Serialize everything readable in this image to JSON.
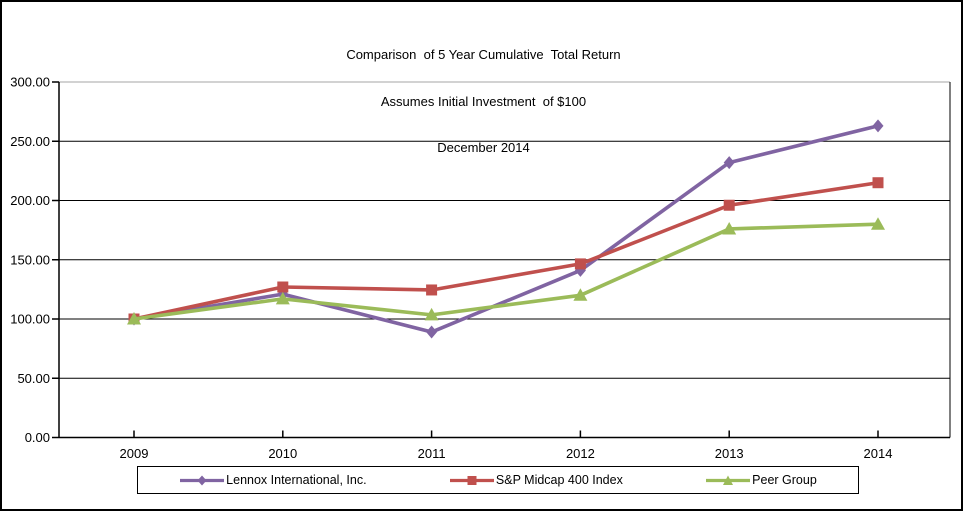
{
  "title": {
    "line1": "Comparison  of 5 Year Cumulative  Total Return",
    "line2": "Assumes Initial Investment  of $100",
    "line3": "December 2014"
  },
  "chart_data": {
    "type": "line",
    "title": "Comparison of 5 Year Cumulative Total Return",
    "subtitle": "Assumes Initial Investment of $100",
    "period_label": "December 2014",
    "categories": [
      "2009",
      "2010",
      "2011",
      "2012",
      "2013",
      "2014"
    ],
    "series": [
      {
        "name": "Lennox International, Inc.",
        "color": "#8064A2",
        "marker": "diamond",
        "values": [
          100,
          121,
          89,
          141,
          232,
          263
        ]
      },
      {
        "name": "S&P Midcap 400 Index",
        "color": "#C0504D",
        "marker": "square",
        "values": [
          100,
          127,
          124.5,
          146.5,
          196,
          215
        ]
      },
      {
        "name": "Peer Group",
        "color": "#9BBB59",
        "marker": "triangle",
        "values": [
          100,
          117,
          103.5,
          120,
          176,
          180
        ]
      }
    ],
    "xlabel": "",
    "ylabel": "",
    "ylim": [
      0,
      300
    ],
    "ytick_step": 50,
    "yticks": [
      {
        "label": "0.00",
        "value": 0
      },
      {
        "label": "50.00",
        "value": 50
      },
      {
        "label": "100.00",
        "value": 100
      },
      {
        "label": "150.00",
        "value": 150
      },
      {
        "label": "200.00",
        "value": 200
      },
      {
        "label": "250.00",
        "value": 250
      },
      {
        "label": "300.00",
        "value": 300
      }
    ],
    "grid": "horizontal",
    "legend_position": "bottom",
    "axis_color": "#000000",
    "top_border_color": "#a6a6a6",
    "background_color": "#ffffff"
  }
}
